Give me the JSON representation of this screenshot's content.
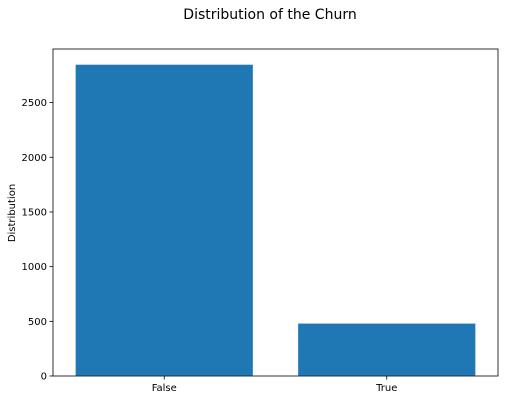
{
  "chart_data": {
    "type": "bar",
    "title": "Distribution of the Churn",
    "xlabel": "",
    "ylabel": "Distribution",
    "categories": [
      "False",
      "True"
    ],
    "values": [
      2850,
      483
    ],
    "ylim": [
      0,
      2990
    ],
    "yticks": [
      0,
      500,
      1000,
      1500,
      2000,
      2500
    ],
    "grid": false,
    "legend": "none",
    "colors": {
      "bar": "#1f77b4",
      "edge": "#ffffff",
      "axis": "#000000"
    }
  }
}
